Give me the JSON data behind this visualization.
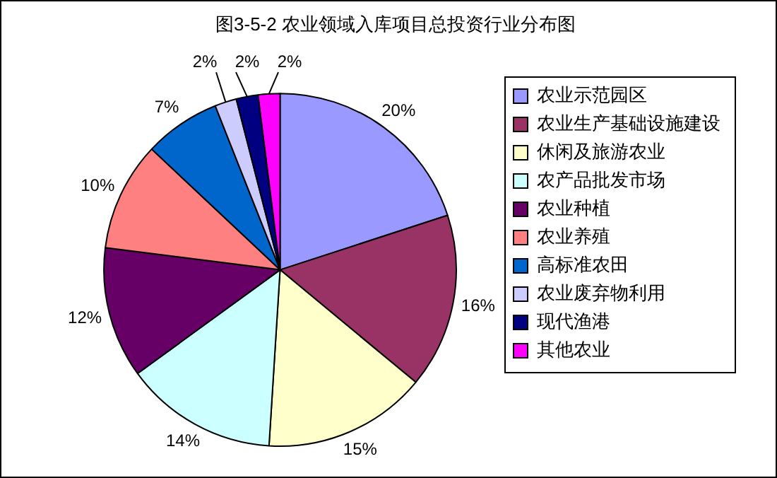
{
  "chart_data": {
    "type": "pie",
    "title": "图3-5-2 农业领域入库项目总投资行业分布图",
    "categories": [
      "农业示范园区",
      "农业生产基础设施建设",
      "休闲及旅游农业",
      "农产品批发市场",
      "农业种植",
      "农业养殖",
      "高标准农田",
      "农业废弃物利用",
      "现代渔港",
      "其他农业"
    ],
    "values": [
      20,
      16,
      15,
      14,
      12,
      10,
      7,
      2,
      2,
      2
    ],
    "value_labels": [
      "20%",
      "16%",
      "15%",
      "14%",
      "12%",
      "10%",
      "7%",
      "2%",
      "2%",
      "2%"
    ],
    "colors": [
      "#9999ff",
      "#993366",
      "#ffffcc",
      "#ccffff",
      "#660066",
      "#ff8080",
      "#0066cc",
      "#ccccff",
      "#000080",
      "#ff00ff"
    ],
    "legend": "right"
  }
}
